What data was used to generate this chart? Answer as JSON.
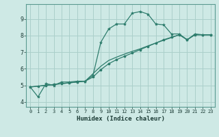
{
  "xlabel": "Humidex (Indice chaleur)",
  "ylabel": "",
  "xlim": [
    -0.5,
    23.5
  ],
  "ylim": [
    3.7,
    9.9
  ],
  "xticks": [
    0,
    1,
    2,
    3,
    4,
    5,
    6,
    7,
    8,
    9,
    10,
    11,
    12,
    13,
    14,
    15,
    16,
    17,
    18,
    19,
    20,
    21,
    22,
    23
  ],
  "yticks": [
    4,
    5,
    6,
    7,
    8,
    9
  ],
  "bg_color": "#cee9e5",
  "line_color": "#2e7d6d",
  "grid_color": "#aacfca",
  "line1_x": [
    0,
    1,
    2,
    3,
    4,
    5,
    6,
    7,
    8,
    9,
    10,
    11,
    12,
    13,
    14,
    15,
    16,
    17,
    18,
    19,
    20,
    21,
    22,
    23
  ],
  "line1_y": [
    4.9,
    4.3,
    5.1,
    5.0,
    5.2,
    5.2,
    5.25,
    5.25,
    5.6,
    7.6,
    8.4,
    8.7,
    8.7,
    9.35,
    9.45,
    9.3,
    8.7,
    8.65,
    8.1,
    8.1,
    7.75,
    8.1,
    8.05,
    8.05
  ],
  "line2_x": [
    0,
    1,
    2,
    3,
    4,
    5,
    6,
    7,
    8,
    9,
    10,
    11,
    12,
    13,
    14,
    15,
    16,
    17,
    18,
    19,
    20,
    21,
    22,
    23
  ],
  "line2_y": [
    4.9,
    4.95,
    5.0,
    5.05,
    5.1,
    5.15,
    5.2,
    5.25,
    5.5,
    5.95,
    6.3,
    6.55,
    6.75,
    6.95,
    7.15,
    7.35,
    7.55,
    7.75,
    7.9,
    8.05,
    7.75,
    8.05,
    8.05,
    8.05
  ],
  "line3_x": [
    0,
    1,
    2,
    3,
    4,
    5,
    6,
    7,
    8,
    9,
    10,
    11,
    12,
    13,
    14,
    15,
    16,
    17,
    18,
    19,
    20,
    21,
    22,
    23
  ],
  "line3_y": [
    4.9,
    4.95,
    5.0,
    5.05,
    5.1,
    5.15,
    5.2,
    5.25,
    5.7,
    6.15,
    6.5,
    6.7,
    6.88,
    7.05,
    7.2,
    7.38,
    7.55,
    7.72,
    7.88,
    8.05,
    7.75,
    8.05,
    8.05,
    8.05
  ]
}
